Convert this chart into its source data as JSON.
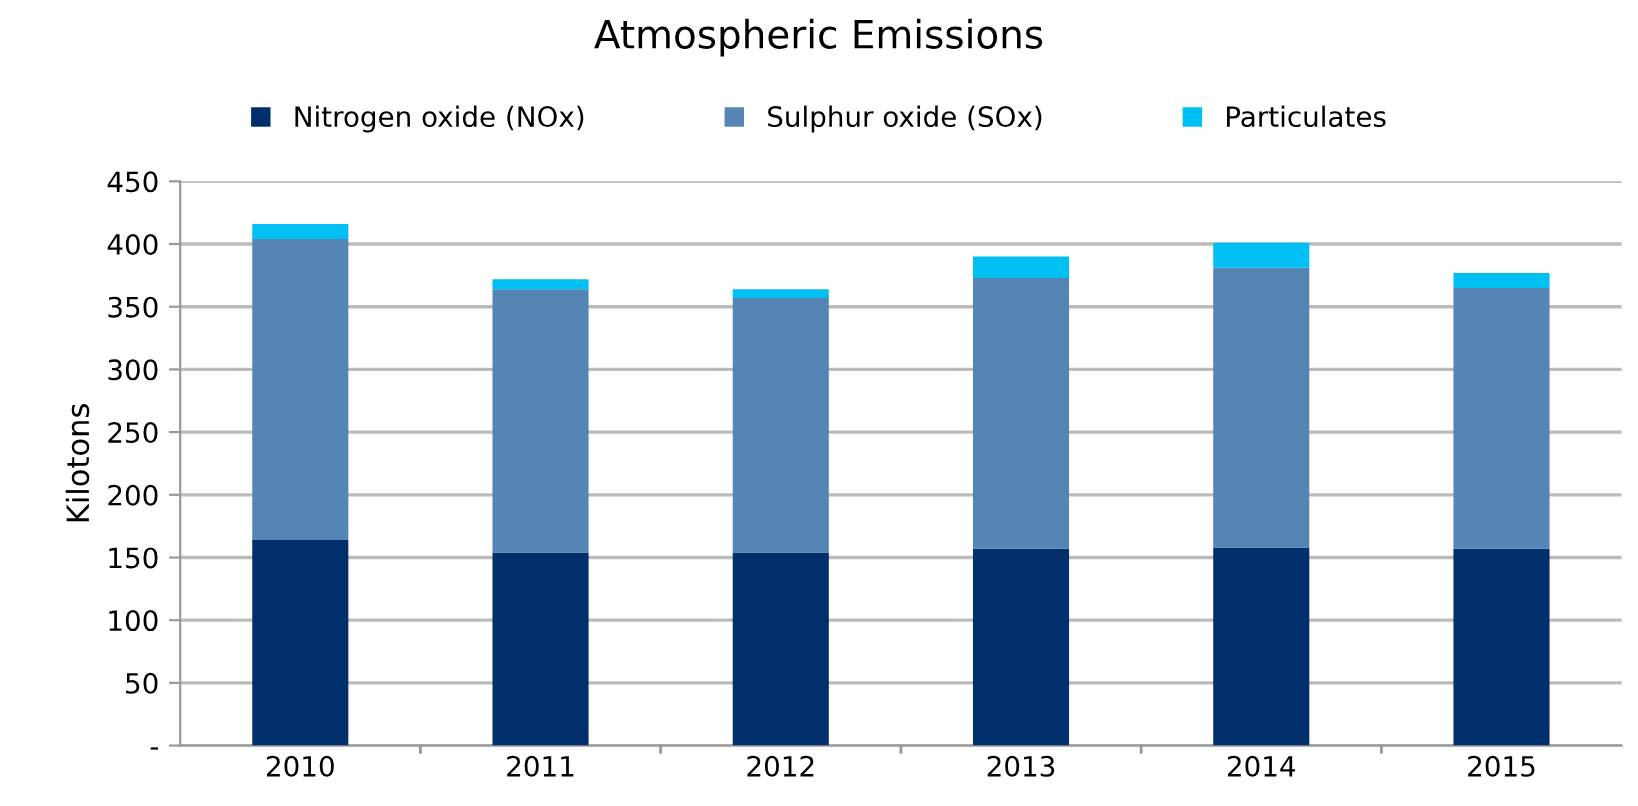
{
  "chart_data": {
    "type": "bar",
    "title": "Atmospheric Emissions",
    "ylabel": "Kilotons",
    "categories": [
      "2010",
      "2011",
      "2012",
      "2013",
      "2014",
      "2015"
    ],
    "series": [
      {
        "name": "Nitrogen oxide (NOx)",
        "color": "#002f6c",
        "values": [
          164,
          154,
          154,
          157,
          158,
          157
        ]
      },
      {
        "name": "Sulphur oxide (SOx)",
        "color": "#5585b5",
        "values": [
          240,
          210,
          203,
          216,
          223,
          208
        ]
      },
      {
        "name": "Particulates",
        "color": "#00bff3",
        "values": [
          12,
          8,
          7,
          17,
          20,
          12
        ]
      }
    ],
    "stacked": true,
    "ylim": [
      0,
      450
    ],
    "yticks": [
      {
        "value": 0,
        "label": "-"
      },
      50,
      100,
      150,
      200,
      250,
      300,
      350,
      400,
      450
    ],
    "grid": "y",
    "legend": "top"
  }
}
